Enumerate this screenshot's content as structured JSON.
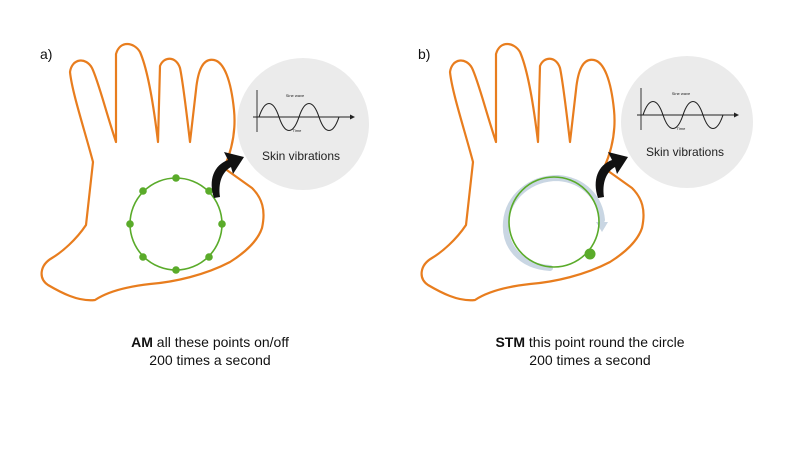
{
  "panels": [
    {
      "label": "a)",
      "callout": {
        "title": "Sine wave",
        "axis": "Time",
        "caption": "Skin vibrations"
      },
      "caption": {
        "bold": "AM",
        "line1": " all these points on/off",
        "line2": "200 times a second"
      }
    },
    {
      "label": "b)",
      "callout": {
        "title": "Sine wave",
        "axis": "Time",
        "caption": "Skin vibrations"
      },
      "caption": {
        "bold": "STM",
        "line1": " this point round the circle",
        "line2": "200 times a second"
      }
    }
  ],
  "colors": {
    "hand_outline": "#e87d1e",
    "circle": "#5aab2a",
    "point": "#5aab2a",
    "callout_bg": "#ebebeb",
    "arrow": "#111111",
    "motion_ring": "#c9d6e3"
  }
}
